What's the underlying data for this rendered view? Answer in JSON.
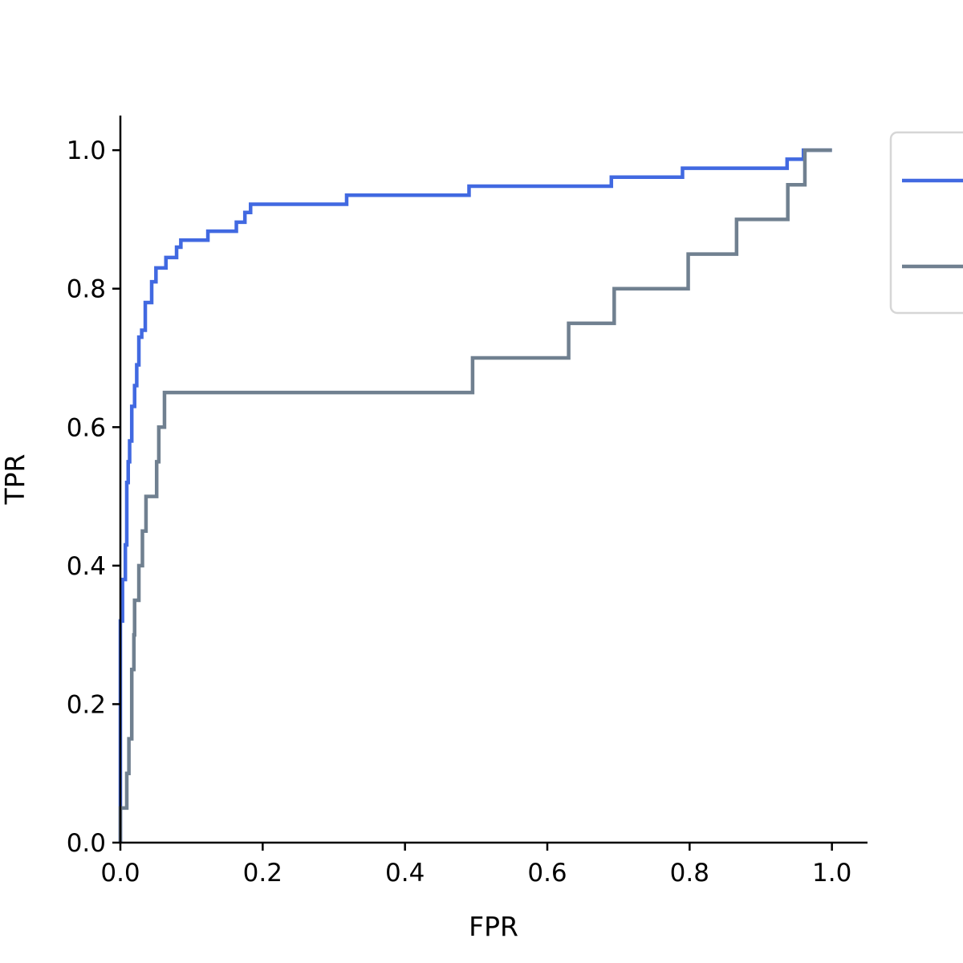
{
  "chart_data": {
    "type": "line",
    "title": "",
    "xlabel": "FPR",
    "ylabel": "TPR",
    "xlim": [
      0,
      1.05
    ],
    "ylim": [
      0,
      1.05
    ],
    "xticks": [
      0.0,
      0.2,
      0.4,
      0.6,
      0.8,
      1.0
    ],
    "yticks": [
      0.0,
      0.2,
      0.4,
      0.6,
      0.8,
      1.0
    ],
    "tick_labels_x": [
      "0.0",
      "0.2",
      "0.4",
      "0.6",
      "0.8",
      "1.0"
    ],
    "tick_labels_y": [
      "0.0",
      "0.2",
      "0.4",
      "0.6",
      "0.8",
      "1.0"
    ],
    "grid": false,
    "legend": {
      "placement": "outside-top-right"
    },
    "series": [
      {
        "color": "#4169e1",
        "points": [
          [
            0.0,
            0.0
          ],
          [
            0.0,
            0.32
          ],
          [
            0.003,
            0.32
          ],
          [
            0.003,
            0.38
          ],
          [
            0.007,
            0.38
          ],
          [
            0.007,
            0.43
          ],
          [
            0.009,
            0.43
          ],
          [
            0.009,
            0.52
          ],
          [
            0.011,
            0.52
          ],
          [
            0.011,
            0.55
          ],
          [
            0.013,
            0.55
          ],
          [
            0.013,
            0.58
          ],
          [
            0.016,
            0.58
          ],
          [
            0.016,
            0.63
          ],
          [
            0.02,
            0.63
          ],
          [
            0.02,
            0.66
          ],
          [
            0.023,
            0.66
          ],
          [
            0.023,
            0.69
          ],
          [
            0.026,
            0.69
          ],
          [
            0.026,
            0.73
          ],
          [
            0.03,
            0.73
          ],
          [
            0.03,
            0.74
          ],
          [
            0.035,
            0.74
          ],
          [
            0.035,
            0.78
          ],
          [
            0.044,
            0.78
          ],
          [
            0.044,
            0.81
          ],
          [
            0.05,
            0.81
          ],
          [
            0.05,
            0.83
          ],
          [
            0.064,
            0.83
          ],
          [
            0.064,
            0.845
          ],
          [
            0.079,
            0.845
          ],
          [
            0.079,
            0.86
          ],
          [
            0.085,
            0.86
          ],
          [
            0.085,
            0.87
          ],
          [
            0.123,
            0.87
          ],
          [
            0.123,
            0.883
          ],
          [
            0.163,
            0.883
          ],
          [
            0.163,
            0.896
          ],
          [
            0.175,
            0.896
          ],
          [
            0.175,
            0.91
          ],
          [
            0.183,
            0.91
          ],
          [
            0.183,
            0.922
          ],
          [
            0.318,
            0.922
          ],
          [
            0.318,
            0.935
          ],
          [
            0.49,
            0.935
          ],
          [
            0.49,
            0.948
          ],
          [
            0.69,
            0.948
          ],
          [
            0.69,
            0.961
          ],
          [
            0.79,
            0.961
          ],
          [
            0.79,
            0.974
          ],
          [
            0.937,
            0.974
          ],
          [
            0.937,
            0.987
          ],
          [
            0.96,
            0.987
          ],
          [
            0.96,
            1.0
          ],
          [
            1.0,
            1.0
          ]
        ]
      },
      {
        "color": "#708090",
        "points": [
          [
            0.0,
            0.0
          ],
          [
            0.0,
            0.05
          ],
          [
            0.009,
            0.05
          ],
          [
            0.009,
            0.1
          ],
          [
            0.012,
            0.1
          ],
          [
            0.012,
            0.15
          ],
          [
            0.016,
            0.15
          ],
          [
            0.016,
            0.25
          ],
          [
            0.019,
            0.25
          ],
          [
            0.019,
            0.3
          ],
          [
            0.02,
            0.3
          ],
          [
            0.02,
            0.35
          ],
          [
            0.026,
            0.35
          ],
          [
            0.026,
            0.4
          ],
          [
            0.031,
            0.4
          ],
          [
            0.031,
            0.45
          ],
          [
            0.036,
            0.45
          ],
          [
            0.036,
            0.5
          ],
          [
            0.051,
            0.5
          ],
          [
            0.051,
            0.55
          ],
          [
            0.054,
            0.55
          ],
          [
            0.054,
            0.6
          ],
          [
            0.062,
            0.6
          ],
          [
            0.062,
            0.65
          ],
          [
            0.495,
            0.65
          ],
          [
            0.495,
            0.7
          ],
          [
            0.63,
            0.7
          ],
          [
            0.63,
            0.75
          ],
          [
            0.694,
            0.75
          ],
          [
            0.694,
            0.8
          ],
          [
            0.798,
            0.8
          ],
          [
            0.798,
            0.85
          ],
          [
            0.866,
            0.85
          ],
          [
            0.866,
            0.9
          ],
          [
            0.938,
            0.9
          ],
          [
            0.938,
            0.95
          ],
          [
            0.962,
            0.95
          ],
          [
            0.962,
            1.0
          ],
          [
            1.0,
            1.0
          ]
        ]
      }
    ]
  }
}
